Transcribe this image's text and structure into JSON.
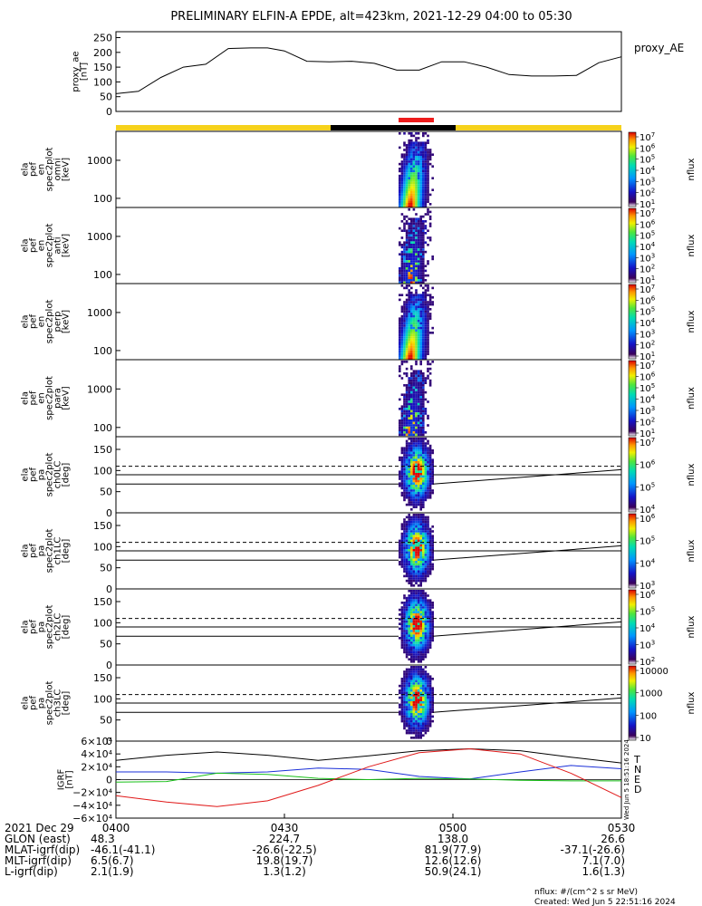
{
  "title": "PRELIMINARY ELFIN-A EPDE, alt=423km, 2021-12-29 04:00 to 05:30",
  "colors": {
    "phase_fill": "#f6d21c",
    "phase_bar": "#000000",
    "science_bar": "#ee1c1c",
    "T": "#000000",
    "N": "#1a2fd8",
    "E": "#18c018",
    "D": "#e01818"
  },
  "time_axis": {
    "start": "04:00",
    "end": "05:30",
    "tick_labels": [
      "0400",
      "0430",
      "0500",
      "0530"
    ],
    "tick_minutes": [
      0,
      30,
      60,
      90
    ],
    "row_labels": [
      "2021 Dec 29",
      "GLON (east)",
      "MLAT-igrf(dip)",
      "MLT-igrf(dip)",
      "L-igrf(dip)"
    ],
    "rows": [
      [
        "48.3",
        "224.7",
        "138.0",
        "26.6"
      ],
      [
        "-46.1(-41.1)",
        "-26.6(-22.5)",
        "81.9(77.9)",
        "-37.1(-26.6)"
      ],
      [
        "6.5(6.7)",
        "19.8(19.7)",
        "12.6(12.6)",
        "7.1(7.0)"
      ],
      [
        "2.1(1.9)",
        "1.3(1.2)",
        "50.9(24.1)",
        "1.6(1.3)"
      ]
    ]
  },
  "footer": {
    "units": "nflux: #/(cm^2 s sr MeV)",
    "created": "Created: Wed Jun  5 22:51:16 2024",
    "side_stamp": "Wed Jun  5 18:51:16 2024"
  },
  "chart_data": [
    {
      "type": "line",
      "ylabel": [
        "proxy_ae",
        "[nT]"
      ],
      "series_label": "proxy_AE",
      "yticks": [
        "250",
        "200",
        "150",
        "100",
        "50",
        "0"
      ],
      "ylim": [
        0,
        270
      ],
      "x_minutes": [
        0,
        4,
        8,
        12,
        16,
        20,
        24,
        27,
        30,
        34,
        38,
        42,
        46,
        50,
        54,
        58,
        62,
        66,
        70,
        74,
        78,
        82,
        86,
        90
      ],
      "values": [
        60,
        68,
        115,
        150,
        160,
        213,
        215,
        215,
        205,
        170,
        168,
        170,
        163,
        140,
        140,
        168,
        168,
        150,
        125,
        120,
        120,
        122,
        165,
        185
      ]
    },
    {
      "type": "heatmap",
      "panel": "ela_pef_en_spec2plot_omni",
      "ylabel": [
        "ela",
        "pef",
        "en",
        "spec2plot",
        "omni",
        "[keV]"
      ],
      "yticks": [
        "1000",
        "100"
      ],
      "colorbar": {
        "label": "nflux",
        "ticks": [
          "10^7",
          "10^6",
          "10^5",
          "10^4",
          "10^3",
          "10^2",
          "10^1"
        ]
      }
    },
    {
      "type": "heatmap",
      "panel": "ela_pef_en_spec2plot_anti",
      "ylabel": [
        "ela",
        "pef",
        "en",
        "spec2plot",
        "anti",
        "[keV]"
      ],
      "yticks": [
        "1000",
        "100"
      ],
      "colorbar": {
        "label": "nflux",
        "ticks": [
          "10^7",
          "10^6",
          "10^5",
          "10^4",
          "10^3",
          "10^2",
          "10^1"
        ]
      }
    },
    {
      "type": "heatmap",
      "panel": "ela_pef_en_spec2plot_perp",
      "ylabel": [
        "ela",
        "pef",
        "en",
        "spec2plot",
        "perp",
        "[keV]"
      ],
      "yticks": [
        "1000",
        "100"
      ],
      "colorbar": {
        "label": "nflux",
        "ticks": [
          "10^7",
          "10^6",
          "10^5",
          "10^4",
          "10^3",
          "10^2",
          "10^1"
        ]
      }
    },
    {
      "type": "heatmap",
      "panel": "ela_pef_en_spec2plot_para",
      "ylabel": [
        "ela",
        "pef",
        "en",
        "spec2plot",
        "para",
        "[keV]"
      ],
      "yticks": [
        "1000",
        "100"
      ],
      "colorbar": {
        "label": "nflux",
        "ticks": [
          "10^7",
          "10^6",
          "10^5",
          "10^4",
          "10^3",
          "10^2",
          "10^1"
        ]
      }
    },
    {
      "type": "heatmap",
      "panel": "ela_pef_pa_spec2plot_ch0LC",
      "ylabel": [
        "ela",
        "pef",
        "pa",
        "spec2plot",
        "ch0LC",
        "[deg]"
      ],
      "yticks": [
        "150",
        "100",
        "50",
        "0"
      ],
      "colorbar": {
        "label": "nflux",
        "ticks": [
          "10^7",
          "10^6",
          "10^5",
          "10^4"
        ]
      }
    },
    {
      "type": "heatmap",
      "panel": "ela_pef_pa_spec2plot_ch1LC",
      "ylabel": [
        "ela",
        "pef",
        "pa",
        "spec2plot",
        "ch1LC",
        "[deg]"
      ],
      "yticks": [
        "150",
        "100",
        "50",
        "0"
      ],
      "colorbar": {
        "label": "nflux",
        "ticks": [
          "10^6",
          "10^5",
          "10^4",
          "10^3"
        ]
      }
    },
    {
      "type": "heatmap",
      "panel": "ela_pef_pa_spec2plot_ch2LC",
      "ylabel": [
        "ela",
        "pef",
        "pa",
        "spec2plot",
        "ch2LC",
        "[deg]"
      ],
      "yticks": [
        "150",
        "100",
        "50",
        "0"
      ],
      "colorbar": {
        "label": "nflux",
        "ticks": [
          "10^6",
          "10^5",
          "10^4",
          "10^3",
          "10^2"
        ]
      }
    },
    {
      "type": "heatmap",
      "panel": "ela_pef_pa_spec2plot_ch3LC",
      "ylabel": [
        "ela",
        "pef",
        "pa",
        "spec2plot",
        "ch3LC",
        "[deg]"
      ],
      "yticks": [
        "150",
        "100",
        "50",
        "0"
      ],
      "colorbar": {
        "label": "nflux",
        "ticks": [
          "10000",
          "1000",
          "100",
          "10"
        ]
      }
    },
    {
      "type": "line",
      "ylabel": [
        "IGRF",
        "[nT]"
      ],
      "yticks": [
        "6×10⁴",
        "4×10⁴",
        "2×10⁴",
        "0",
        "−2×10⁴",
        "−4×10⁴",
        "−6×10⁴"
      ],
      "ylim": [
        -60000,
        60000
      ],
      "x_minutes": [
        0,
        9,
        18,
        27,
        36,
        45,
        54,
        63,
        72,
        81,
        90
      ],
      "series": [
        {
          "name": "T",
          "values": [
            30000,
            38000,
            43000,
            38000,
            30000,
            37000,
            45000,
            48000,
            45000,
            35000,
            26000
          ]
        },
        {
          "name": "N",
          "values": [
            12000,
            12000,
            10000,
            12000,
            18000,
            16000,
            5000,
            1000,
            12000,
            22000,
            17000
          ]
        },
        {
          "name": "E",
          "values": [
            -4000,
            -3000,
            10000,
            8000,
            2000,
            0,
            2000,
            1000,
            -1000,
            -2000,
            -2000
          ]
        },
        {
          "name": "D",
          "values": [
            -25000,
            -35000,
            -42000,
            -33000,
            -9000,
            20000,
            42000,
            48000,
            40000,
            10000,
            -28000
          ]
        }
      ]
    }
  ]
}
